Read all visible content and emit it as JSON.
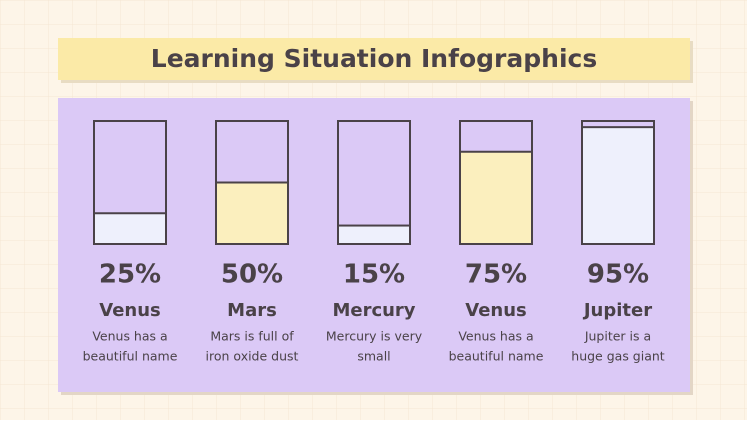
{
  "chart_data": {
    "type": "bar",
    "title": "Learning Situation Infographics",
    "categories": [
      "Venus",
      "Mars",
      "Mercury",
      "Venus",
      "Jupiter"
    ],
    "values": [
      25,
      50,
      15,
      75,
      95
    ],
    "value_labels": [
      "25%",
      "50%",
      "15%",
      "75%",
      "95%"
    ],
    "descriptions": [
      [
        "Venus has a",
        "beautiful name"
      ],
      [
        "Mars is full of",
        "iron oxide dust"
      ],
      [
        "Mercury is very",
        "small"
      ],
      [
        "Venus has a",
        "beautiful name"
      ],
      [
        "Jupiter is a",
        "huge gas giant"
      ]
    ],
    "colors": [
      "#eef0fc",
      "#fbefbe",
      "#eef0fc",
      "#fbefbe",
      "#eef0fc"
    ],
    "ylim": [
      0,
      100
    ]
  }
}
